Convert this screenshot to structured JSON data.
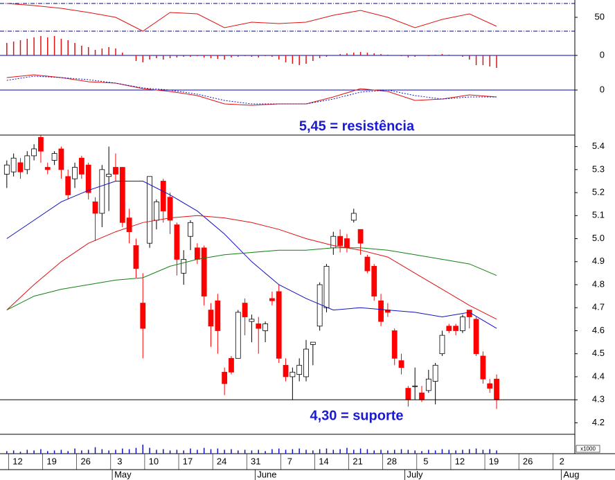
{
  "chart_data": [
    {
      "type": "line",
      "ylim": [
        25,
        75
      ],
      "yticks": [
        50
      ],
      "reference_lines": [
        70,
        30
      ],
      "reference_color": "#000080",
      "series": [
        {
          "color": "#e01010",
          "x": [
            0,
            4,
            8,
            12,
            16,
            20,
            24,
            28,
            32,
            36,
            40,
            44,
            48,
            52,
            56,
            60,
            64,
            68,
            72
          ],
          "values": [
            70,
            67,
            63,
            57,
            50,
            30,
            57,
            55,
            35,
            43,
            41,
            43,
            53,
            60,
            50,
            35,
            47,
            55,
            37
          ]
        }
      ]
    },
    {
      "type": "bar",
      "ylim": [
        -20,
        30
      ],
      "yticks": [
        0
      ],
      "grid": true,
      "grid_color": "#0000c0",
      "color": "#e01010",
      "x": [
        0,
        1,
        2,
        3,
        4,
        5,
        6,
        7,
        8,
        9,
        10,
        11,
        12,
        13,
        14,
        15,
        16,
        17,
        18,
        19,
        20,
        21,
        22,
        23,
        24,
        25,
        26,
        27,
        28,
        29,
        30,
        31,
        32,
        33,
        34,
        35,
        36,
        37,
        38,
        39,
        40,
        41,
        42,
        43,
        44,
        45,
        46,
        47,
        48,
        49,
        50,
        51,
        52,
        53,
        54,
        55,
        56,
        57,
        58,
        59,
        60,
        61,
        62,
        63,
        64,
        65,
        66,
        67,
        68,
        69,
        70,
        71,
        72
      ],
      "values": [
        18,
        20,
        22,
        24,
        26,
        28,
        26,
        28,
        24,
        22,
        18,
        14,
        12,
        8,
        10,
        12,
        10,
        4,
        0,
        -8,
        -10,
        -6,
        -4,
        -6,
        -4,
        -3,
        -2,
        -2,
        -1,
        -3,
        -4,
        -5,
        -6,
        -3,
        -2,
        -1,
        -2,
        -3,
        -1,
        -2,
        -6,
        -10,
        -12,
        -14,
        -12,
        -8,
        -4,
        -2,
        0,
        2,
        3,
        4,
        5,
        4,
        3,
        2,
        1,
        0,
        -1,
        -3,
        -2,
        0,
        -1,
        1,
        2,
        1,
        0,
        -2,
        -6,
        -14,
        -14,
        -16,
        -18
      ]
    },
    {
      "type": "line",
      "ylim": [
        -65,
        30
      ],
      "yticks": [
        0
      ],
      "grid": true,
      "grid_color": "#0000c0",
      "series": [
        {
          "color": "#e01010",
          "x": [
            0,
            4,
            8,
            12,
            16,
            20,
            24,
            28,
            32,
            36,
            40,
            44,
            48,
            52,
            56,
            60,
            64,
            68,
            72
          ],
          "values": [
            18,
            22,
            18,
            12,
            10,
            2,
            -2,
            -8,
            -20,
            -22,
            -20,
            -20,
            -10,
            2,
            -2,
            -15,
            -13,
            -7,
            -10
          ]
        },
        {
          "color": "#1010c0",
          "dash": true,
          "x": [
            0,
            4,
            8,
            12,
            16,
            20,
            24,
            28,
            32,
            36,
            40,
            44,
            48,
            52,
            56,
            60,
            64,
            68,
            72
          ],
          "values": [
            14,
            20,
            18,
            15,
            10,
            3,
            0,
            -6,
            -15,
            -20,
            -20,
            -20,
            -13,
            -3,
            0,
            -8,
            -13,
            -10,
            -10
          ]
        }
      ]
    },
    {
      "type": "candlestick",
      "ylim": [
        4.15,
        5.45
      ],
      "xlim": [
        -1,
        83.5
      ],
      "yticks": [
        5.4,
        5.3,
        5.2,
        5.1,
        {
          "value": 5,
          "label": "5.0"
        },
        4.9,
        4.8,
        4.7,
        4.6,
        4.5,
        4.4,
        4.3,
        4.2
      ],
      "xticks": [
        {
          "value": 2,
          "label": "12"
        },
        {
          "value": 7,
          "label": "19"
        },
        {
          "value": 12,
          "label": "26"
        },
        {
          "value": 17,
          "label": "3"
        },
        {
          "value": 22,
          "label": "10"
        },
        {
          "value": 27,
          "label": "17"
        },
        {
          "value": 32,
          "label": "24"
        },
        {
          "value": 37,
          "label": "31"
        },
        {
          "value": 42,
          "label": "7"
        },
        {
          "value": 47,
          "label": "14"
        },
        {
          "value": 52,
          "label": "21"
        },
        {
          "value": 57,
          "label": "28"
        },
        {
          "value": 62,
          "label": "5"
        },
        {
          "value": 67,
          "label": "12"
        },
        {
          "value": 72,
          "label": "19"
        },
        {
          "value": 77,
          "label": "26"
        },
        {
          "value": 82,
          "label": "2"
        }
      ],
      "months": [
        {
          "value": 15.5,
          "label": "May"
        },
        {
          "value": 36.5,
          "label": "June"
        },
        {
          "value": 58.5,
          "label": "July"
        },
        {
          "value": 81.5,
          "label": "Aug"
        }
      ],
      "up_color": "#ffffff",
      "down_color": "#ff0000",
      "annotations": [
        {
          "text": "5,45 = resistência",
          "value": 5.45
        },
        {
          "text": "4,30 = suporte",
          "value": 4.3
        }
      ],
      "x": [
        0,
        1,
        2,
        3,
        4,
        5,
        6,
        7,
        8,
        9,
        10,
        11,
        12,
        13,
        14,
        15,
        16,
        17,
        18,
        19,
        20,
        21,
        22,
        23,
        24,
        25,
        26,
        27,
        28,
        29,
        30,
        31,
        32,
        33,
        34,
        35,
        36,
        37,
        38,
        39,
        40,
        41,
        42,
        43,
        44,
        45,
        46,
        47,
        48,
        49,
        50,
        51,
        52,
        53,
        54,
        55,
        56,
        57,
        58,
        59,
        60,
        61,
        62,
        63,
        64,
        65,
        66,
        67,
        68,
        69,
        70,
        71,
        72
      ],
      "open": [
        5.28,
        5.29,
        5.33,
        5.3,
        5.36,
        5.44,
        5.31,
        5.34,
        5.39,
        5.27,
        5.26,
        5.35,
        5.32,
        5.16,
        5.11,
        5.27,
        5.31,
        5.31,
        5.09,
        4.97,
        4.72,
        4.98,
        5.08,
        5.25,
        5.18,
        5.06,
        4.85,
        5.01,
        4.96,
        4.96,
        4.69,
        4.73,
        4.42,
        4.48,
        4.48,
        4.72,
        4.64,
        4.63,
        4.6,
        4.74,
        4.77,
        4.45,
        4.4,
        4.41,
        4.4,
        4.54,
        4.62,
        4.7,
        4.96,
        5.01,
        5.0,
        5.08,
        5.04,
        4.92,
        4.88,
        4.73,
        4.69,
        4.6,
        4.47,
        4.35,
        4.36,
        4.33,
        4.34,
        4.38,
        4.5,
        4.62,
        4.62,
        4.6,
        4.69,
        4.65,
        4.49,
        4.37,
        4.39
      ],
      "high": [
        5.34,
        5.37,
        5.35,
        5.38,
        5.41,
        5.45,
        5.33,
        5.38,
        5.4,
        5.3,
        5.33,
        5.36,
        5.33,
        5.18,
        5.32,
        5.4,
        5.37,
        5.31,
        5.13,
        5.0,
        4.85,
        5.27,
        5.17,
        5.26,
        5.2,
        5.07,
        4.95,
        5.08,
        4.98,
        4.97,
        4.72,
        4.76,
        4.44,
        4.49,
        4.69,
        4.74,
        4.67,
        4.66,
        4.64,
        4.77,
        4.8,
        4.48,
        4.44,
        4.48,
        4.56,
        4.55,
        4.81,
        4.89,
        5.03,
        5.04,
        5.02,
        5.13,
        5.04,
        4.93,
        4.89,
        4.76,
        4.72,
        4.61,
        4.5,
        4.36,
        4.44,
        4.36,
        4.43,
        4.46,
        4.6,
        4.63,
        4.63,
        4.67,
        4.69,
        4.66,
        4.51,
        4.39,
        4.41
      ],
      "low": [
        5.22,
        5.27,
        5.26,
        5.28,
        5.34,
        5.33,
        5.28,
        5.32,
        5.26,
        5.17,
        5.22,
        5.26,
        5.17,
        4.99,
        5.05,
        5.12,
        5.25,
        5.05,
        4.98,
        4.83,
        4.48,
        4.96,
        5.04,
        5.07,
        5.02,
        4.84,
        4.8,
        4.95,
        4.89,
        4.71,
        4.53,
        4.5,
        4.32,
        4.41,
        4.48,
        4.58,
        4.55,
        4.5,
        4.55,
        4.71,
        4.46,
        4.38,
        4.3,
        4.38,
        4.38,
        4.45,
        4.6,
        4.68,
        4.93,
        4.94,
        4.94,
        5.07,
        4.93,
        4.85,
        4.73,
        4.62,
        4.66,
        4.45,
        4.41,
        4.27,
        4.3,
        4.29,
        4.33,
        4.28,
        4.49,
        4.59,
        4.58,
        4.59,
        4.61,
        4.49,
        4.37,
        4.33,
        4.26
      ],
      "close": [
        5.32,
        5.35,
        5.29,
        5.36,
        5.39,
        5.38,
        5.3,
        5.37,
        5.3,
        5.19,
        5.31,
        5.28,
        5.2,
        5.11,
        5.3,
        5.28,
        5.28,
        5.07,
        5.03,
        4.87,
        4.61,
        5.27,
        5.16,
        5.12,
        5.08,
        4.91,
        4.91,
        5.07,
        4.91,
        4.75,
        4.62,
        4.6,
        4.37,
        4.42,
        4.68,
        4.66,
        4.65,
        4.61,
        4.63,
        4.73,
        4.48,
        4.4,
        4.42,
        4.45,
        4.52,
        4.55,
        4.8,
        4.88,
        5.01,
        4.97,
        4.96,
        5.11,
        4.98,
        4.86,
        4.75,
        4.64,
        4.68,
        4.48,
        4.44,
        4.3,
        4.36,
        4.3,
        4.39,
        4.45,
        4.58,
        4.6,
        4.6,
        4.66,
        4.66,
        4.5,
        4.39,
        4.35,
        4.3
      ],
      "series": [
        {
          "color": "#1010c0",
          "x": [
            0,
            4,
            8,
            12,
            16,
            20,
            24,
            28,
            32,
            36,
            40,
            44,
            48,
            52,
            56,
            60,
            64,
            68,
            72
          ],
          "values": [
            5.0,
            5.08,
            5.16,
            5.21,
            5.25,
            5.25,
            5.19,
            5.12,
            5.02,
            4.9,
            4.8,
            4.74,
            4.69,
            4.7,
            4.69,
            4.68,
            4.66,
            4.68,
            4.61
          ]
        },
        {
          "color": "#e01010",
          "x": [
            0,
            4,
            8,
            12,
            16,
            20,
            24,
            28,
            32,
            36,
            40,
            44,
            48,
            52,
            56,
            60,
            64,
            68,
            72
          ],
          "values": [
            4.69,
            4.8,
            4.9,
            4.98,
            5.03,
            5.07,
            5.09,
            5.1,
            5.09,
            5.07,
            5.04,
            5.0,
            4.97,
            4.95,
            4.92,
            4.85,
            4.78,
            4.71,
            4.65
          ]
        },
        {
          "color": "#108010",
          "x": [
            0,
            4,
            8,
            12,
            16,
            20,
            24,
            28,
            32,
            36,
            40,
            44,
            48,
            52,
            56,
            60,
            64,
            68,
            72
          ],
          "values": [
            4.69,
            4.75,
            4.78,
            4.8,
            4.82,
            4.83,
            4.88,
            4.91,
            4.93,
            4.94,
            4.95,
            4.95,
            4.96,
            4.96,
            4.95,
            4.93,
            4.91,
            4.89,
            4.84
          ]
        }
      ]
    },
    {
      "type": "bar",
      "ylim": [
        0,
        30
      ],
      "color": "#1010c0",
      "unit_label": "x1000",
      "x": [
        0,
        1,
        2,
        3,
        4,
        5,
        6,
        7,
        8,
        9,
        10,
        11,
        12,
        13,
        14,
        15,
        16,
        17,
        18,
        19,
        20,
        21,
        22,
        23,
        24,
        25,
        26,
        27,
        28,
        29,
        30,
        31,
        32,
        33,
        34,
        35,
        36,
        37,
        38,
        39,
        40,
        41,
        42,
        43,
        44,
        45,
        46,
        47,
        48,
        49,
        50,
        51,
        52,
        53,
        54,
        55,
        56,
        57,
        58,
        59,
        60,
        61,
        62,
        63,
        64,
        65,
        66,
        67,
        68,
        69,
        70,
        71,
        72
      ],
      "values": [
        4,
        5,
        3,
        6,
        5,
        7,
        4,
        5,
        6,
        4,
        8,
        5,
        6,
        10,
        7,
        5,
        6,
        8,
        7,
        9,
        14,
        9,
        6,
        7,
        5,
        6,
        5,
        8,
        6,
        9,
        7,
        8,
        6,
        7,
        5,
        6,
        5,
        6,
        4,
        7,
        8,
        6,
        7,
        8,
        6,
        5,
        7,
        8,
        6,
        7,
        9,
        6,
        8,
        7,
        5,
        6,
        5,
        6,
        7,
        6,
        5,
        4,
        6,
        5,
        7,
        6,
        5,
        6,
        7,
        8,
        6,
        7,
        5
      ]
    }
  ]
}
